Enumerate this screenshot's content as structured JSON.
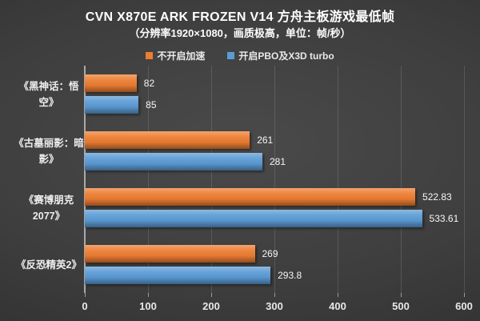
{
  "chart_data": {
    "type": "bar",
    "orientation": "horizontal",
    "title": "CVN X870E ARK FROZEN V14 方舟主板游戏最低帧",
    "subtitle": "（分辨率1920×1080，画质极高，单位：帧/秒）",
    "categories": [
      "《黑神话：悟空》",
      "《古墓丽影：暗影》",
      "《赛博朋克2077》",
      "《反恐精英2》"
    ],
    "category_lines": [
      [
        "《黑神话：悟",
        "空》"
      ],
      [
        "《古墓丽影：暗",
        "影》"
      ],
      [
        "《赛博朋克",
        "2077》"
      ],
      [
        "《反恐精英2》"
      ]
    ],
    "series": [
      {
        "name": "不开启加速",
        "color": "#ED7D31",
        "values": [
          82,
          261,
          522.83,
          269
        ],
        "labels": [
          "82",
          "261",
          "522.83",
          "269"
        ]
      },
      {
        "name": "开启PBO及X3D turbo",
        "color": "#5B9BD5",
        "values": [
          85,
          281,
          533.61,
          293.8
        ],
        "labels": [
          "85",
          "281",
          "533.61",
          "293.8"
        ]
      }
    ],
    "xlim": [
      0,
      600
    ],
    "xticks": [
      0,
      100,
      200,
      300,
      400,
      500,
      600
    ],
    "grid": true,
    "legend_position": "top",
    "background_color": "#3e3e3e",
    "text_color": "#ffffff"
  }
}
